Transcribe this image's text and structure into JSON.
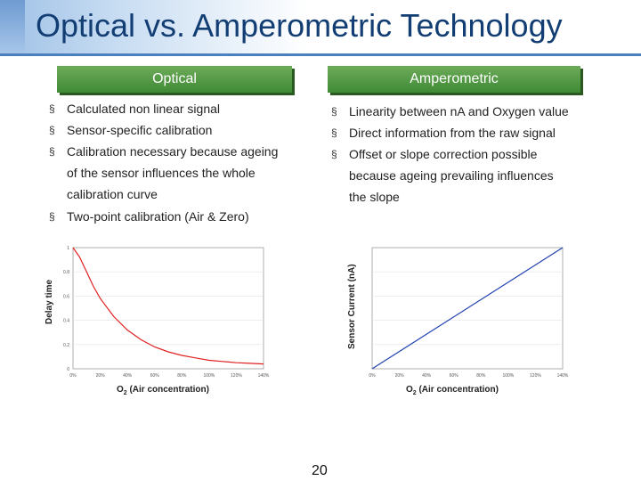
{
  "slide": {
    "title": "Optical vs. Amperometric Technology",
    "page_number": "20"
  },
  "optical": {
    "header": "Optical",
    "bullets": [
      "Calculated non linear signal",
      "Sensor-specific calibration",
      "Calibration necessary because ageing",
      "of the sensor influences the whole",
      "calibration curve",
      "Two-point calibration (Air & Zero)"
    ]
  },
  "amperometric": {
    "header": "Amperometric",
    "bullets": [
      "Linearity between nA and Oxygen value",
      "Direct information from the raw signal",
      "Offset or slope correction possible",
      "because ageing prevailing influences",
      "the slope"
    ]
  },
  "bullet_marker": "§",
  "colors": {
    "title": "#123e74",
    "header_green": "#4a8f3e",
    "curve_red": "#e02020",
    "line_blue": "#2040b0"
  },
  "chart_data": [
    {
      "type": "line",
      "ylabel": "Delay time",
      "xlabel_prefix": "O",
      "xlabel_sub": "2",
      "xlabel_suffix": " (Air concentration)",
      "x_ticks": [
        "0%",
        "20%",
        "40%",
        "60%",
        "80%",
        "100%",
        "120%",
        "140%"
      ],
      "y_ticks": [
        "0",
        "0.2",
        "0.4",
        "0.6",
        "0.8",
        "1"
      ],
      "xlim": [
        0,
        140
      ],
      "ylim": [
        0,
        1
      ],
      "series": [
        {
          "name": "Delay time",
          "color": "#e02020",
          "x": [
            0,
            5,
            10,
            15,
            20,
            30,
            40,
            50,
            60,
            70,
            80,
            90,
            100,
            110,
            120,
            130,
            140
          ],
          "values": [
            1.0,
            0.92,
            0.8,
            0.68,
            0.58,
            0.43,
            0.32,
            0.24,
            0.18,
            0.14,
            0.11,
            0.09,
            0.07,
            0.06,
            0.05,
            0.045,
            0.04
          ]
        }
      ]
    },
    {
      "type": "line",
      "ylabel": "Sensor Current (nA)",
      "xlabel_prefix": "O",
      "xlabel_sub": "2",
      "xlabel_suffix": " (Air concentration)",
      "x_ticks": [
        "0%",
        "20%",
        "40%",
        "60%",
        "80%",
        "100%",
        "120%",
        "140%"
      ],
      "xlim": [
        0,
        140
      ],
      "ylim": [
        0,
        1
      ],
      "series": [
        {
          "name": "Sensor current",
          "color": "#2040b0",
          "x": [
            0,
            140
          ],
          "values": [
            0,
            1.0
          ]
        }
      ]
    }
  ]
}
